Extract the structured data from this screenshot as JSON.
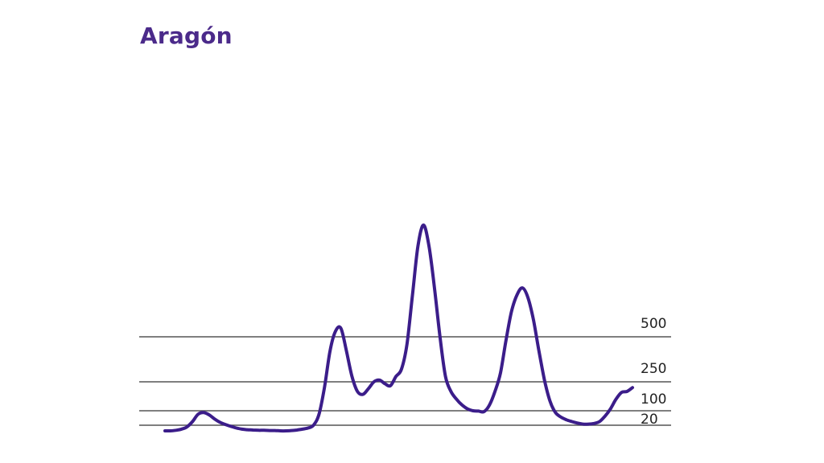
{
  "chart_data": {
    "type": "line",
    "title": "Aragón",
    "xlabel": "",
    "ylabel": "",
    "y_scale": "nonlinear (grid at 20, 100, 250, 500)",
    "y_ticks": [
      20,
      100,
      250,
      500
    ],
    "grid": "horizontal lines at each tick",
    "colors": {
      "title": "#4b2a8a",
      "line": "#3b1d8a",
      "grid": "#555555"
    },
    "series": [
      {
        "values": [
          0,
          0,
          2,
          6,
          14,
          40,
          80,
          90,
          78,
          55,
          36,
          24,
          16,
          10,
          6,
          4,
          3,
          2,
          2,
          1,
          1,
          0,
          0,
          1,
          3,
          6,
          10,
          20,
          80,
          220,
          420,
          540,
          560,
          420,
          280,
          200,
          185,
          215,
          250,
          260,
          240,
          230,
          280,
          320,
          460,
          800,
          1150,
          1300,
          1150,
          850,
          500,
          280,
          200,
          160,
          130,
          110,
          100,
          98,
          95,
          130,
          200,
          300,
          480,
          680,
          800,
          850,
          780,
          620,
          420,
          260,
          150,
          90,
          65,
          50,
          40,
          32,
          26,
          26,
          30,
          40,
          70,
          110,
          160,
          195,
          200,
          220
        ]
      }
    ]
  }
}
